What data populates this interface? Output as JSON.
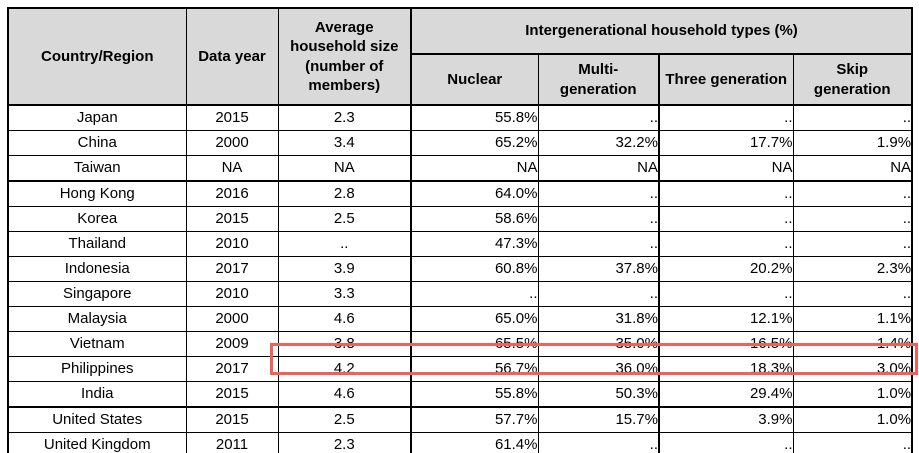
{
  "table": {
    "headers": {
      "country": "Country/Region",
      "data_year": "Data year",
      "avg_household": "Average\nhousehold size\n(number of\nmembers)",
      "group": "Intergenerational household types (%)",
      "nuclear": "Nuclear",
      "multi_generation": "Multi-\ngeneration",
      "three_generation": "Three generation",
      "skip_generation": "Skip\ngeneration"
    },
    "rows": [
      {
        "country": "Japan",
        "data_year": "2015",
        "avg_household_size": "2.3",
        "nuclear": "55.8%",
        "multi_generation": "..",
        "three_generation": "..",
        "skip_generation": ".."
      },
      {
        "country": "China",
        "data_year": "2000",
        "avg_household_size": "3.4",
        "nuclear": "65.2%",
        "multi_generation": "32.2%",
        "three_generation": "17.7%",
        "skip_generation": "1.9%"
      },
      {
        "country": "Taiwan",
        "data_year": "NA",
        "avg_household_size": "NA",
        "nuclear": "NA",
        "multi_generation": "NA",
        "three_generation": "NA",
        "skip_generation": "NA",
        "group_end": true
      },
      {
        "country": "Hong Kong",
        "data_year": "2016",
        "avg_household_size": "2.8",
        "nuclear": "64.0%",
        "multi_generation": "..",
        "three_generation": "..",
        "skip_generation": ".."
      },
      {
        "country": "Korea",
        "data_year": "2015",
        "avg_household_size": "2.5",
        "nuclear": "58.6%",
        "multi_generation": "..",
        "three_generation": "..",
        "skip_generation": ".."
      },
      {
        "country": "Thailand",
        "data_year": "2010",
        "avg_household_size": "..",
        "nuclear": "47.3%",
        "multi_generation": "..",
        "three_generation": "..",
        "skip_generation": ".."
      },
      {
        "country": "Indonesia",
        "data_year": "2017",
        "avg_household_size": "3.9",
        "nuclear": "60.8%",
        "multi_generation": "37.8%",
        "three_generation": "20.2%",
        "skip_generation": "2.3%"
      },
      {
        "country": "Singapore",
        "data_year": "2010",
        "avg_household_size": "3.3",
        "nuclear": "..",
        "multi_generation": "..",
        "three_generation": "..",
        "skip_generation": ".."
      },
      {
        "country": "Malaysia",
        "data_year": "2000",
        "avg_household_size": "4.6",
        "nuclear": "65.0%",
        "multi_generation": "31.8%",
        "three_generation": "12.1%",
        "skip_generation": "1.1%"
      },
      {
        "country": "Vietnam",
        "data_year": "2009",
        "avg_household_size": "3.8",
        "nuclear": "65.5%",
        "multi_generation": "35.0%",
        "three_generation": "16.5%",
        "skip_generation": "1.4%"
      },
      {
        "country": "Philippines",
        "data_year": "2017",
        "avg_household_size": "4.2",
        "nuclear": "56.7%",
        "multi_generation": "36.0%",
        "three_generation": "18.3%",
        "skip_generation": "3.0%",
        "highlighted": true
      },
      {
        "country": "India",
        "data_year": "2015",
        "avg_household_size": "4.6",
        "nuclear": "55.8%",
        "multi_generation": "50.3%",
        "three_generation": "29.4%",
        "skip_generation": "1.0%",
        "group_end": true
      },
      {
        "country": "United States",
        "data_year": "2015",
        "avg_household_size": "2.5",
        "nuclear": "57.7%",
        "multi_generation": "15.7%",
        "three_generation": "3.9%",
        "skip_generation": "1.0%"
      },
      {
        "country": "United Kingdom",
        "data_year": "2011",
        "avg_household_size": "2.3",
        "nuclear": "61.4%",
        "multi_generation": "..",
        "three_generation": "..",
        "skip_generation": ".."
      }
    ],
    "highlight": {
      "row": "Philippines",
      "columns": [
        "avg_household_size",
        "nuclear",
        "multi_generation",
        "three_generation",
        "skip_generation"
      ]
    }
  },
  "colors": {
    "header_bg": "#d9d9d9",
    "border": "#000000",
    "highlight": "#f26158"
  }
}
